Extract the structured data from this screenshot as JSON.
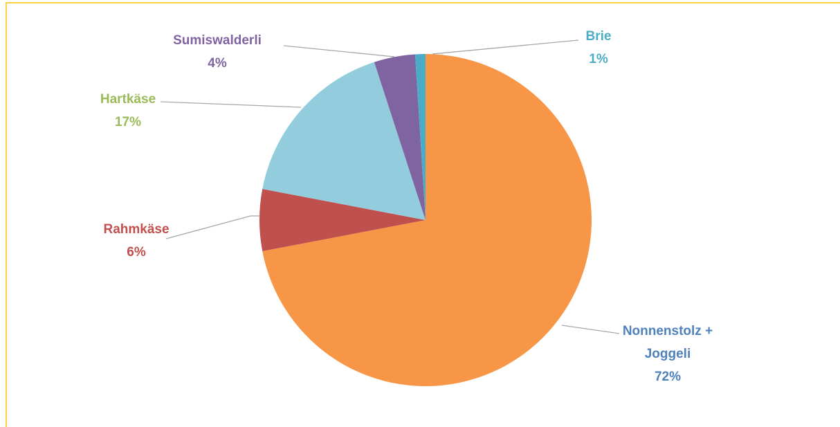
{
  "chart_data": {
    "type": "pie",
    "categories": [
      "Nonnenstolz + Joggeli",
      "Rahmkäse",
      "Hartkäse",
      "Sumiswalderli",
      "Brie"
    ],
    "values": [
      72,
      6,
      17,
      4,
      1
    ],
    "value_labels": [
      "72%",
      "6%",
      "17%",
      "4%",
      "1%"
    ],
    "colors": [
      "#f79646",
      "#c0504d",
      "#93cddd",
      "#8064a2",
      "#4bacc6"
    ],
    "label_colors": [
      "#4f81bd",
      "#c0504d",
      "#9bbb59",
      "#8064a2",
      "#4bacc6"
    ]
  }
}
